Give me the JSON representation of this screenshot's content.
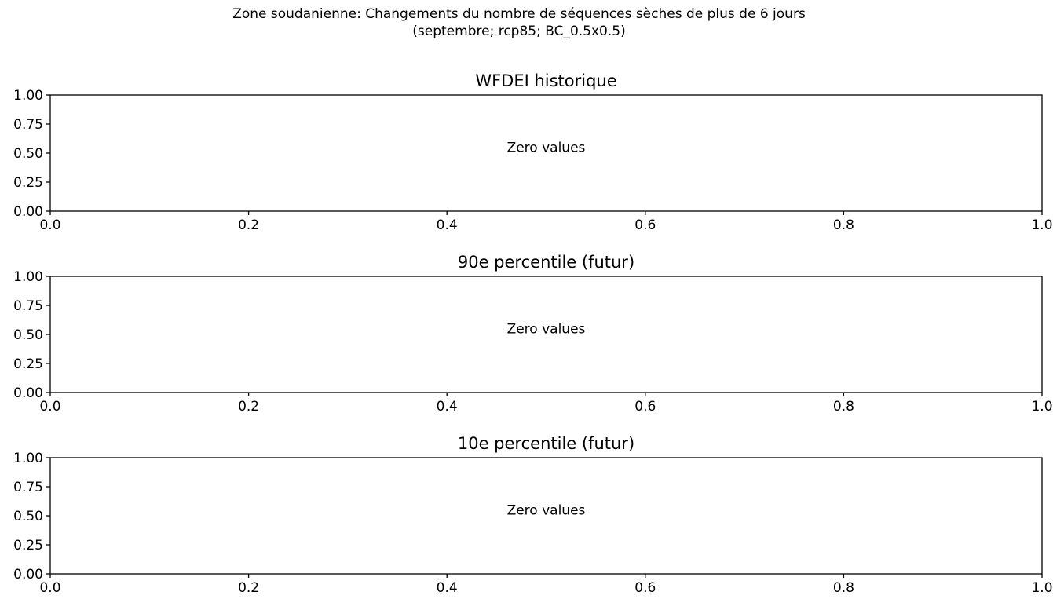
{
  "figure": {
    "title_line1": "Zone soudanienne: Changements du nombre de séquences sèches de plus de 6 jours",
    "title_line2": "(septembre; rcp85; BC_0.5x0.5)"
  },
  "chart_data": [
    {
      "type": "bar",
      "title": "WFDEI historique",
      "annotation": "Zero values",
      "xlim": [
        0.0,
        1.0
      ],
      "ylim": [
        0.0,
        1.0
      ],
      "xticks": [
        "0.0",
        "0.2",
        "0.4",
        "0.6",
        "0.8",
        "1.0"
      ],
      "yticks": [
        "0.00",
        "0.25",
        "0.50",
        "0.75",
        "1.00"
      ],
      "grid": false
    },
    {
      "type": "bar",
      "title": "90e percentile (futur)",
      "annotation": "Zero values",
      "xlim": [
        0.0,
        1.0
      ],
      "ylim": [
        0.0,
        1.0
      ],
      "xticks": [
        "0.0",
        "0.2",
        "0.4",
        "0.6",
        "0.8",
        "1.0"
      ],
      "yticks": [
        "0.00",
        "0.25",
        "0.50",
        "0.75",
        "1.00"
      ],
      "grid": false
    },
    {
      "type": "bar",
      "title": "10e percentile (futur)",
      "annotation": "Zero values",
      "xlim": [
        0.0,
        1.0
      ],
      "ylim": [
        0.0,
        1.0
      ],
      "xticks": [
        "0.0",
        "0.2",
        "0.4",
        "0.6",
        "0.8",
        "1.0"
      ],
      "yticks": [
        "0.00",
        "0.25",
        "0.50",
        "0.75",
        "1.00"
      ],
      "grid": false
    }
  ]
}
